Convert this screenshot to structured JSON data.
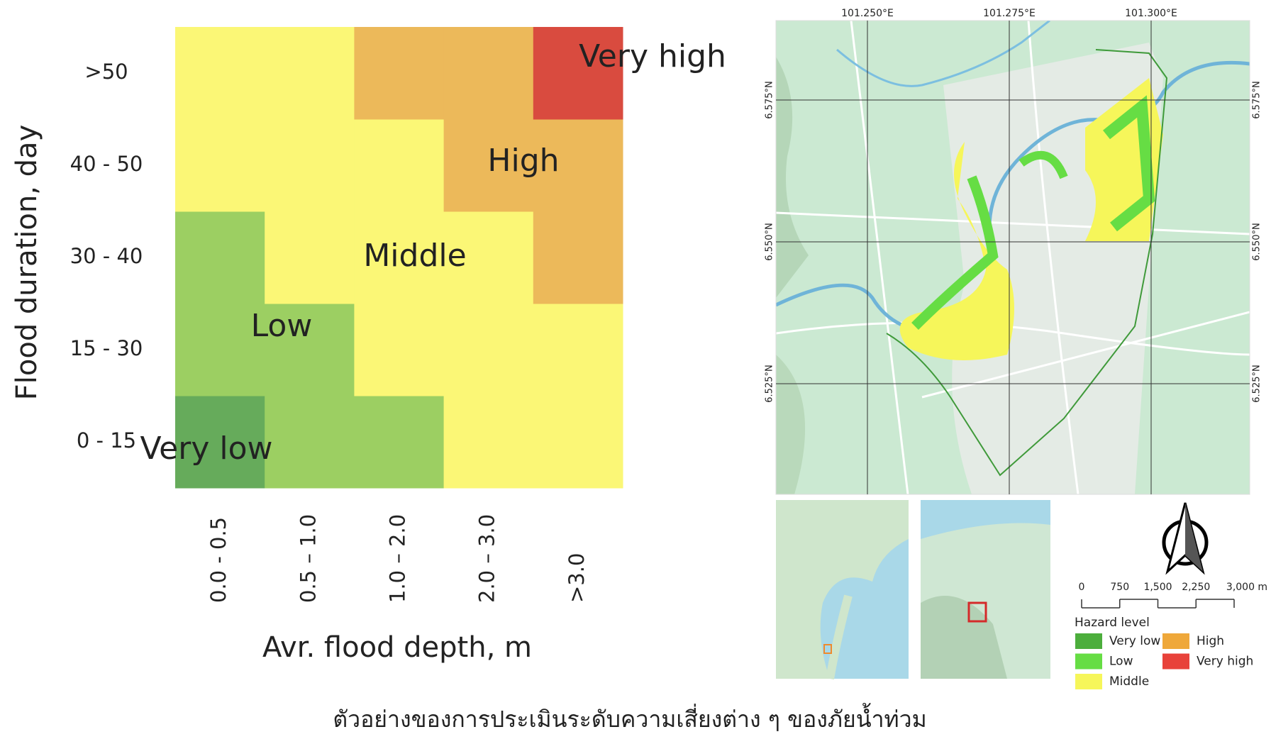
{
  "chart_data": {
    "type": "heatmap",
    "xlabel": "Avr. flood depth, m",
    "ylabel": "Flood duration, day",
    "x_categories": [
      "0.0 - 0.5",
      "0.5 – 1.0",
      "1.0 – 2.0",
      "2.0 – 3.0",
      ">3.0"
    ],
    "y_categories": [
      "0 - 15",
      "15 - 30",
      "30 - 40",
      "40 - 50",
      ">50"
    ],
    "levels": [
      {
        "name": "Very low",
        "color": "#66ab5b"
      },
      {
        "name": "Low",
        "color": "#9ccf62"
      },
      {
        "name": "Middle",
        "color": "#fbf776"
      },
      {
        "name": "High",
        "color": "#ecb95a"
      },
      {
        "name": "Very high",
        "color": "#d94b3f"
      }
    ],
    "values": [
      [
        0,
        1,
        1,
        2,
        2
      ],
      [
        1,
        1,
        2,
        2,
        2
      ],
      [
        1,
        2,
        2,
        2,
        3
      ],
      [
        2,
        2,
        2,
        3,
        3
      ],
      [
        2,
        2,
        3,
        3,
        4
      ]
    ]
  },
  "map": {
    "lon_ticks": [
      {
        "value": 101.25,
        "label": "101.250°E"
      },
      {
        "value": 101.275,
        "label": "101.275°E"
      },
      {
        "value": 101.3,
        "label": "101.300°E"
      }
    ],
    "lat_ticks": [
      {
        "value": 6.575,
        "label": "6.575°N"
      },
      {
        "value": 6.55,
        "label": "6.550°N"
      },
      {
        "value": 6.525,
        "label": "6.525°N"
      }
    ],
    "scale_ticks": [
      0,
      750,
      {
        "value": 1500,
        "label": "1,500"
      },
      {
        "value": 2250,
        "label": "2,250"
      },
      {
        "value": 3000,
        "label": "3,000 m"
      }
    ],
    "legend": {
      "title": "Hazard level",
      "items": [
        {
          "name": "Very low",
          "color": "#4cae3c"
        },
        {
          "name": "Low",
          "color": "#66dd44"
        },
        {
          "name": "Middle",
          "color": "#f6f65a"
        },
        {
          "name": "High",
          "color": "#efa83a"
        },
        {
          "name": "Very high",
          "color": "#e8423a"
        }
      ]
    }
  },
  "caption": "ตัวอย่างของการประเมินระดับความเสี่ยงต่าง ๆ ของภัยน้ำท่วม"
}
